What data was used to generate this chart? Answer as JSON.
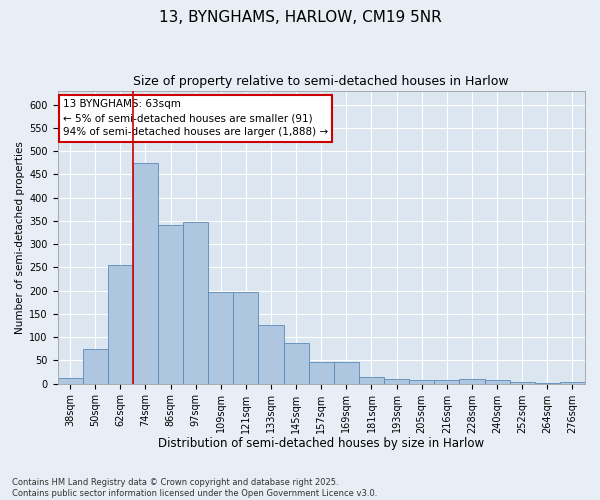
{
  "title": "13, BYNGHAMS, HARLOW, CM19 5NR",
  "subtitle": "Size of property relative to semi-detached houses in Harlow",
  "xlabel": "Distribution of semi-detached houses by size in Harlow",
  "ylabel": "Number of semi-detached properties",
  "categories": [
    "38sqm",
    "50sqm",
    "62sqm",
    "74sqm",
    "86sqm",
    "97sqm",
    "109sqm",
    "121sqm",
    "133sqm",
    "145sqm",
    "157sqm",
    "169sqm",
    "181sqm",
    "193sqm",
    "205sqm",
    "216sqm",
    "228sqm",
    "240sqm",
    "252sqm",
    "264sqm",
    "276sqm"
  ],
  "values": [
    13,
    75,
    255,
    475,
    340,
    348,
    197,
    197,
    125,
    87,
    46,
    46,
    15,
    10,
    7,
    8,
    10,
    7,
    3,
    1,
    3
  ],
  "bar_color": "#aec6e0",
  "bar_edge_color": "#5a8ab5",
  "vline_index": 2,
  "vline_color": "#cc0000",
  "annotation_text": "13 BYNGHAMS: 63sqm\n← 5% of semi-detached houses are smaller (91)\n94% of semi-detached houses are larger (1,888) →",
  "annotation_box_color": "#cc0000",
  "ylim": [
    0,
    630
  ],
  "yticks": [
    0,
    50,
    100,
    150,
    200,
    250,
    300,
    350,
    400,
    450,
    500,
    550,
    600
  ],
  "background_color": "#e8eef5",
  "plot_background_color": "#dce6f0",
  "grid_color": "#ffffff",
  "footnote": "Contains HM Land Registry data © Crown copyright and database right 2025.\nContains public sector information licensed under the Open Government Licence v3.0.",
  "title_fontsize": 11,
  "subtitle_fontsize": 9,
  "xlabel_fontsize": 8.5,
  "ylabel_fontsize": 7.5,
  "tick_fontsize": 7,
  "annotation_fontsize": 7.5,
  "footnote_fontsize": 6
}
